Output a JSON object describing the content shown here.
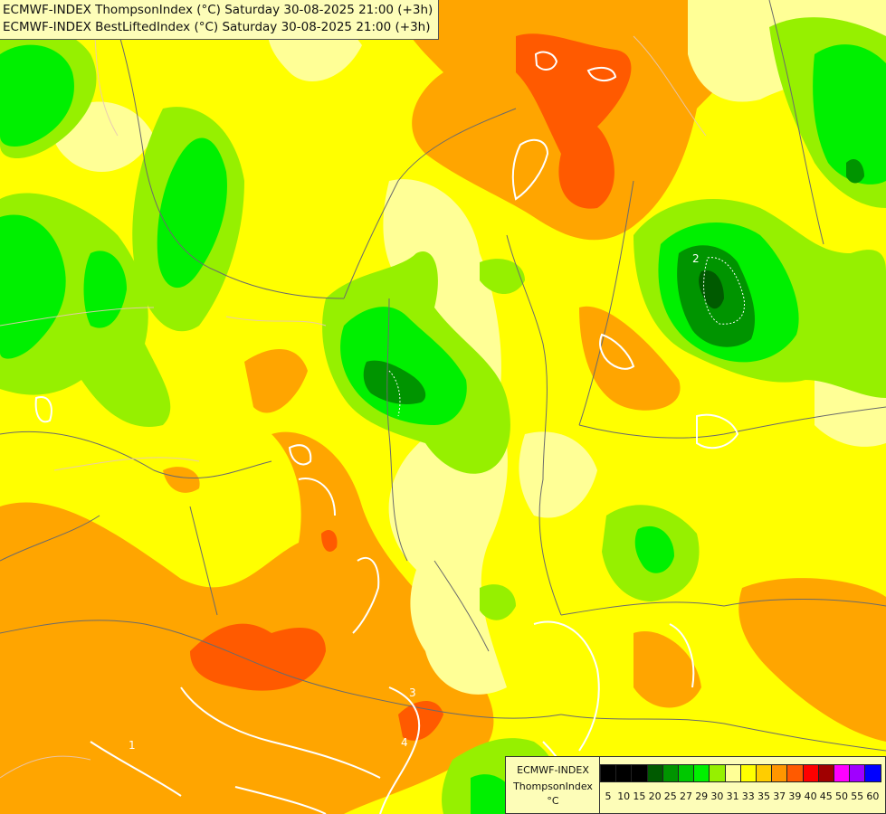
{
  "title": {
    "line1": "ECMWF-INDEX ThompsonIndex (°C) Saturday 30-08-2025 21:00 (+3h)",
    "line2": "ECMWF-INDEX BestLiftedIndex (°C) Saturday 30-08-2025 21:00 (+3h)"
  },
  "legend": {
    "model": "ECMWF-INDEX",
    "parameter": "ThompsonIndex",
    "unit": "°C",
    "items": [
      {
        "label": "5",
        "color": "#000000"
      },
      {
        "label": "10",
        "color": "#000000"
      },
      {
        "label": "15",
        "color": "#000000"
      },
      {
        "label": "20",
        "color": "#005a00"
      },
      {
        "label": "25",
        "color": "#009400"
      },
      {
        "label": "27",
        "color": "#00c800"
      },
      {
        "label": "29",
        "color": "#00f000"
      },
      {
        "label": "30",
        "color": "#96f000"
      },
      {
        "label": "31",
        "color": "#ffff96"
      },
      {
        "label": "33",
        "color": "#ffff00"
      },
      {
        "label": "35",
        "color": "#ffcd00"
      },
      {
        "label": "37",
        "color": "#ff9600"
      },
      {
        "label": "39",
        "color": "#ff5a00"
      },
      {
        "label": "40",
        "color": "#ff0000"
      },
      {
        "label": "45",
        "color": "#a00000"
      },
      {
        "label": "50",
        "color": "#ff00ff"
      },
      {
        "label": "55",
        "color": "#a000ff"
      },
      {
        "label": "60",
        "color": "#0000ff"
      }
    ]
  },
  "contour_labels": [
    "2",
    "3",
    "4",
    "1"
  ]
}
